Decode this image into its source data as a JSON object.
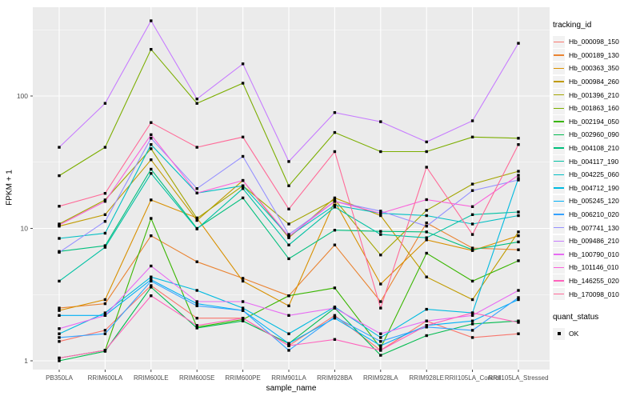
{
  "figure": {
    "panel_background": "#EBEBEB",
    "gridline_color": "#FFFFFF",
    "axis_text_color": "#4D4D4D",
    "tick_mark_color": "#333333",
    "point_color": "#000000",
    "legend_key_background": "#F2F2F2"
  },
  "chart_data": {
    "type": "line",
    "title": "",
    "xlabel": "sample_name",
    "ylabel": "FPKM + 1",
    "y_scale": "log10",
    "y_ticks": [
      1,
      10,
      100
    ],
    "y_tick_labels": [
      "1",
      "10",
      "100"
    ],
    "y_minor_gridlines": [
      3.1623,
      31.623,
      316.23
    ],
    "ylim": [
      0.86,
      460
    ],
    "grid": true,
    "legend_position": "right",
    "legend_titles": {
      "series": "tracking_id",
      "shape": "quant_status"
    },
    "quant_status_items": [
      {
        "label": "OK",
        "marker": "black-square"
      }
    ],
    "marker": {
      "shape": "square",
      "color": "#000000"
    },
    "categories": [
      "PB350LA",
      "RRIM600LA",
      "RRIM600LE",
      "RRIM600SE",
      "RRIM600PE",
      "RRIM901LA",
      "RRIM928BA",
      "RRIM928LA",
      "RRIM928LE",
      "RRII105LA_Control",
      "RRII105LA_Stressed"
    ],
    "series": [
      {
        "name": "Hb_000098_150",
        "color": "#F8766D",
        "values": [
          1.4,
          1.7,
          3.7,
          2.1,
          2.1,
          1.3,
          2.2,
          1.2,
          2.0,
          1.5,
          1.6
        ]
      },
      {
        "name": "Hb_000189_130",
        "color": "#EA8331",
        "values": [
          2.5,
          2.7,
          8.8,
          5.6,
          4.2,
          3.1,
          7.5,
          2.8,
          11.0,
          7.1,
          6.9
        ]
      },
      {
        "name": "Hb_000363_350",
        "color": "#D89000",
        "values": [
          2.4,
          2.9,
          16.4,
          12.0,
          4.0,
          2.6,
          16.0,
          3.8,
          8.2,
          6.8,
          8.8
        ]
      },
      {
        "name": "Hb_000984_260",
        "color": "#C09B00",
        "values": [
          10.4,
          12.7,
          33.0,
          11.5,
          23.0,
          8.5,
          17.0,
          12.5,
          4.3,
          2.9,
          9.4
        ]
      },
      {
        "name": "Hb_001396_210",
        "color": "#A3A500",
        "values": [
          10.8,
          16.4,
          40.0,
          11.9,
          21.0,
          10.8,
          16.5,
          6.3,
          13.7,
          21.6,
          27.0
        ]
      },
      {
        "name": "Hb_001863_160",
        "color": "#7CAE00",
        "values": [
          25,
          41,
          225,
          88,
          125,
          21,
          53,
          38,
          38,
          49,
          48
        ]
      },
      {
        "name": "Hb_002194_050",
        "color": "#39B600",
        "values": [
          1.05,
          1.2,
          11.9,
          1.8,
          2.05,
          3.1,
          3.55,
          1.25,
          6.5,
          4.0,
          5.7
        ]
      },
      {
        "name": "Hb_002960_090",
        "color": "#00BB4E",
        "values": [
          1.0,
          1.18,
          3.6,
          1.77,
          2.0,
          1.35,
          2.5,
          1.1,
          1.55,
          1.9,
          2.0
        ]
      },
      {
        "name": "Hb_004108_210",
        "color": "#00BF7D",
        "values": [
          6.7,
          7.4,
          28.0,
          10.0,
          17.0,
          5.9,
          9.7,
          9.5,
          9.4,
          6.9,
          7.9
        ]
      },
      {
        "name": "Hb_004117_190",
        "color": "#00C1A3",
        "values": [
          4.0,
          7.2,
          26.0,
          9.9,
          20.0,
          7.5,
          14.5,
          9.0,
          8.5,
          12.7,
          13.3
        ]
      },
      {
        "name": "Hb_004225_060",
        "color": "#00BFC4",
        "values": [
          8.4,
          9.2,
          43.0,
          18.5,
          21.0,
          8.7,
          15.0,
          13.0,
          12.5,
          10.8,
          12.5
        ]
      },
      {
        "name": "Hb_004712_190",
        "color": "#00BAE0",
        "values": [
          1.6,
          2.3,
          4.3,
          3.4,
          2.5,
          1.6,
          2.55,
          1.5,
          2.45,
          2.3,
          23.9
        ]
      },
      {
        "name": "Hb_005245_120",
        "color": "#00B0F6",
        "values": [
          2.2,
          2.2,
          4.1,
          2.7,
          2.4,
          1.35,
          2.1,
          1.3,
          1.85,
          2.0,
          2.9
        ]
      },
      {
        "name": "Hb_006210_020",
        "color": "#35A2FF",
        "values": [
          1.5,
          1.6,
          4.0,
          2.6,
          2.4,
          1.2,
          2.15,
          1.4,
          1.8,
          1.7,
          3.0
        ]
      },
      {
        "name": "Hb_007741_130",
        "color": "#9590FF",
        "values": [
          6.6,
          11.3,
          48.0,
          20.0,
          35.0,
          9.0,
          16.0,
          13.5,
          10.4,
          19.3,
          23.2
        ]
      },
      {
        "name": "Hb_009486_210",
        "color": "#C77CFF",
        "values": [
          41,
          88,
          370,
          95,
          175,
          32,
          75,
          64,
          45,
          65,
          250
        ]
      },
      {
        "name": "Hb_100790_010",
        "color": "#E76BF3",
        "values": [
          1.75,
          2.2,
          5.2,
          2.8,
          2.8,
          2.2,
          2.5,
          1.6,
          2.0,
          2.2,
          3.4
        ]
      },
      {
        "name": "Hb_101146_010",
        "color": "#FA62DB",
        "values": [
          10.6,
          16.0,
          51.0,
          18.5,
          23.0,
          8.7,
          16.0,
          13.0,
          16.5,
          14.6,
          25.2
        ]
      },
      {
        "name": "Hb_146255_020",
        "color": "#FF62BC",
        "values": [
          1.05,
          1.2,
          3.1,
          1.85,
          2.1,
          1.3,
          1.45,
          1.2,
          1.85,
          2.3,
          1.95
        ]
      },
      {
        "name": "Hb_170098_010",
        "color": "#FF6A98",
        "values": [
          14.7,
          18.4,
          63.0,
          41.0,
          49.0,
          14.0,
          38.0,
          2.5,
          29.0,
          9.0,
          43.0
        ]
      }
    ]
  }
}
